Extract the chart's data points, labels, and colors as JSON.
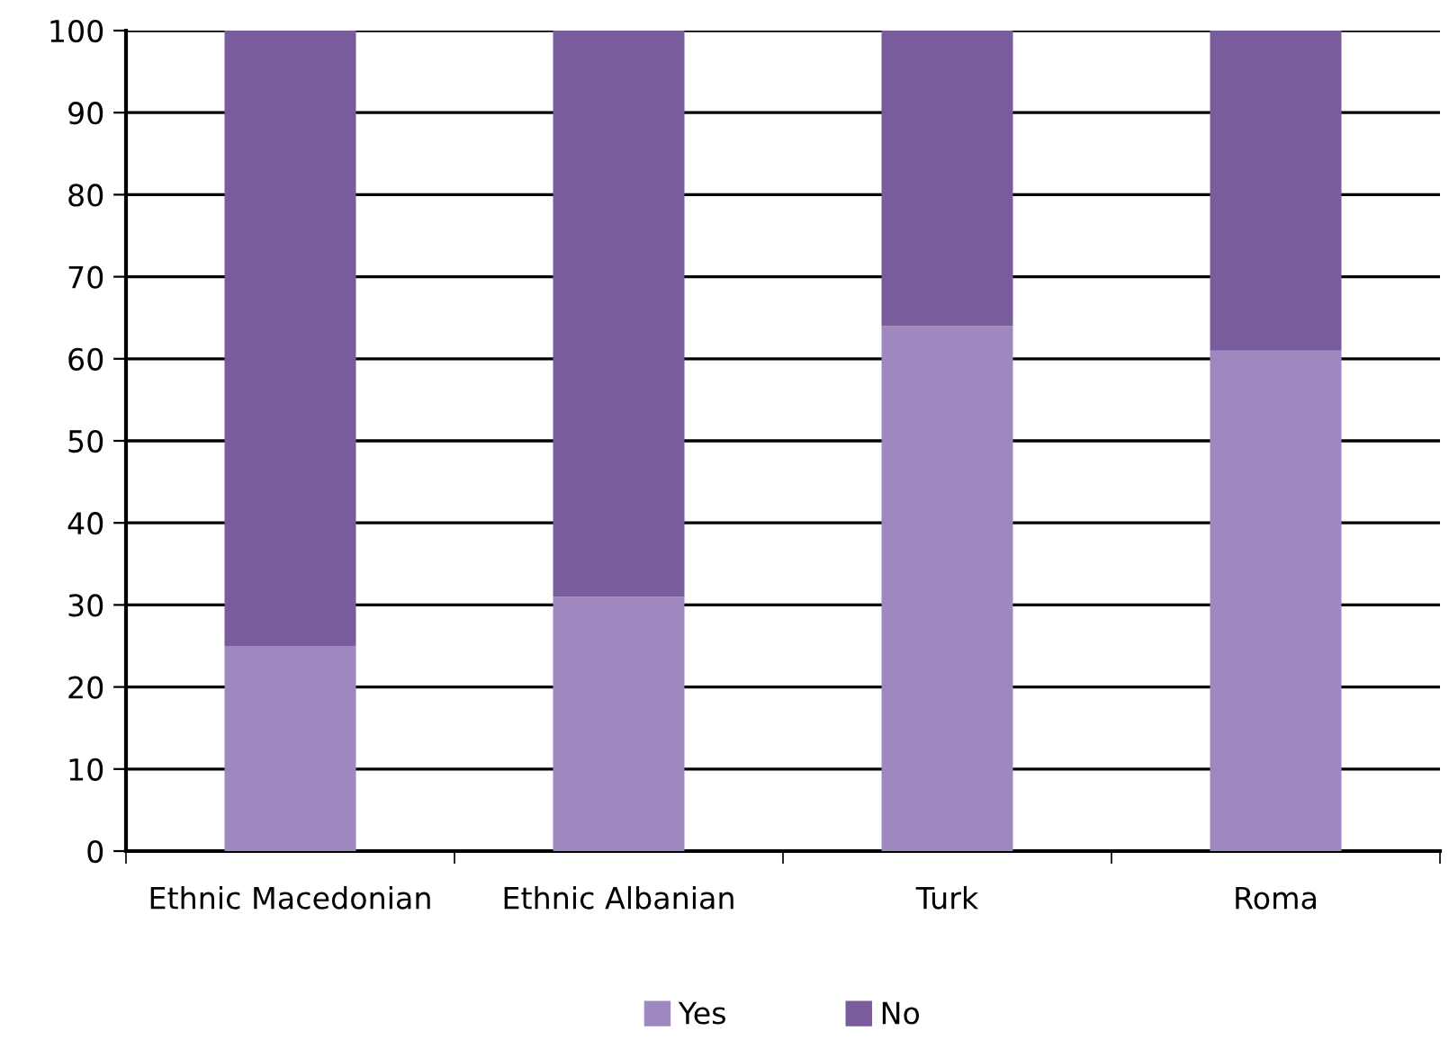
{
  "chart_data": {
    "type": "bar",
    "stacked": true,
    "categories": [
      "Ethnic Macedonian",
      "Ethnic Albanian",
      "Turk",
      "Roma"
    ],
    "series": [
      {
        "name": "Yes",
        "color": "#9e88bf",
        "values": [
          25,
          31,
          64,
          61
        ]
      },
      {
        "name": "No",
        "color": "#795c9c",
        "values": [
          75,
          69,
          36,
          39
        ]
      }
    ],
    "ylim": [
      0,
      100
    ],
    "yticks": [
      0,
      10,
      20,
      30,
      40,
      50,
      60,
      70,
      80,
      90,
      100
    ],
    "grid": "y",
    "legend": "bottom"
  }
}
